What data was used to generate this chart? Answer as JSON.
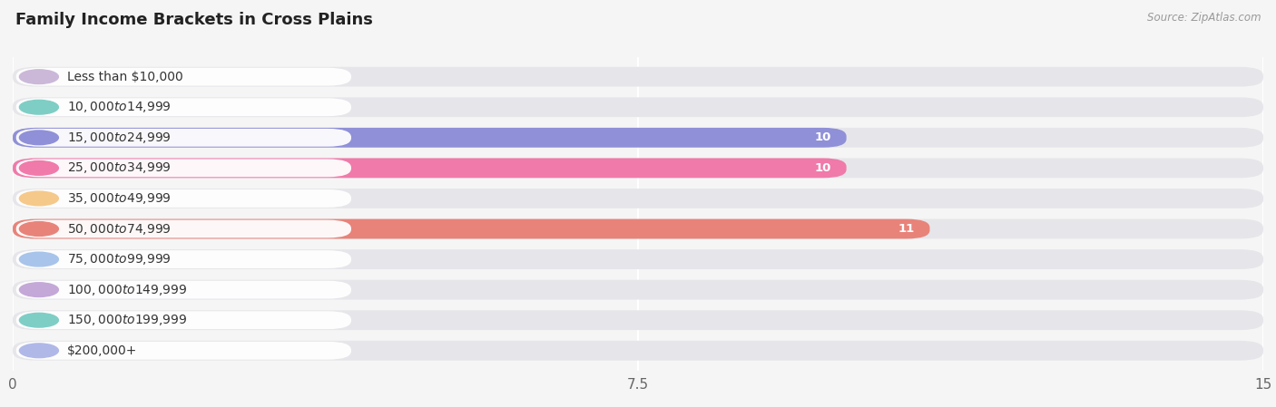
{
  "title": "Family Income Brackets in Cross Plains",
  "source": "Source: ZipAtlas.com",
  "categories": [
    "Less than $10,000",
    "$10,000 to $14,999",
    "$15,000 to $24,999",
    "$25,000 to $34,999",
    "$35,000 to $49,999",
    "$50,000 to $74,999",
    "$75,000 to $99,999",
    "$100,000 to $149,999",
    "$150,000 to $199,999",
    "$200,000+"
  ],
  "values": [
    0,
    0,
    10,
    10,
    0,
    11,
    0,
    0,
    0,
    0
  ],
  "bar_colors": [
    "#cbb8d9",
    "#7ecec5",
    "#9090d8",
    "#f07aaa",
    "#f5c98a",
    "#e8837a",
    "#a8c4ea",
    "#c4a8d8",
    "#7ecec5",
    "#b0b8e8"
  ],
  "xlim": [
    0,
    15
  ],
  "xticks": [
    0,
    7.5,
    15
  ],
  "background_color": "#f5f5f5",
  "bar_background_color": "#e6e6ea",
  "title_fontsize": 13,
  "label_fontsize": 10,
  "tick_fontsize": 11,
  "value_fontsize": 9.5
}
